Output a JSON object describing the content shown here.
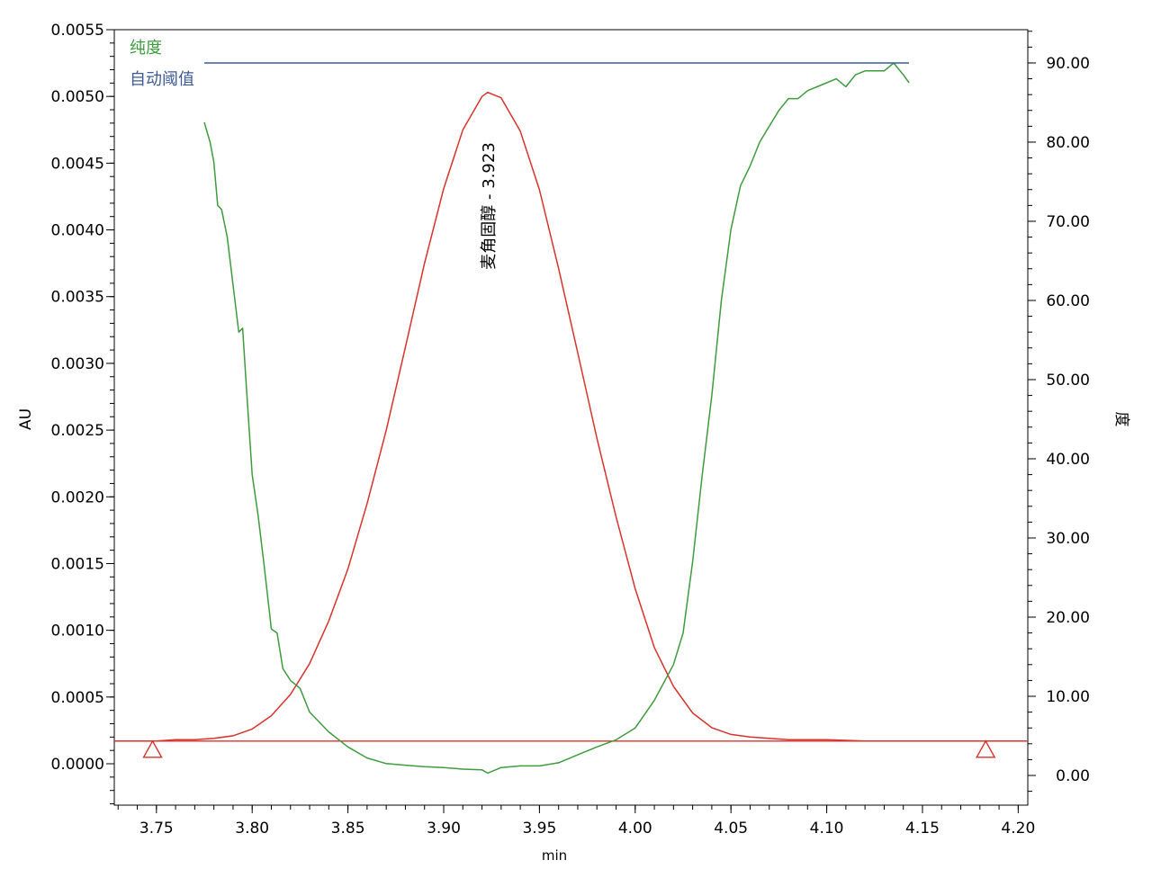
{
  "chart_data": {
    "type": "line",
    "xlabel": "min",
    "ylabel": "AU",
    "y2label": "度",
    "xlim": [
      3.728,
      4.205
    ],
    "ylim": [
      -0.00031,
      0.0055
    ],
    "y2lim": [
      -3.75,
      94.2
    ],
    "grid": false,
    "legend_placement": "top-left",
    "x_ticks": [
      "3.75",
      "3.80",
      "3.85",
      "3.90",
      "3.95",
      "4.00",
      "4.05",
      "4.10",
      "4.15",
      "4.20"
    ],
    "y_ticks": [
      "0.0000",
      "0.0005",
      "0.0010",
      "0.0015",
      "0.0020",
      "0.0025",
      "0.0030",
      "0.0035",
      "0.0040",
      "0.0045",
      "0.0050",
      "0.0055"
    ],
    "y2_ticks": [
      "0.00",
      "10.00",
      "20.00",
      "30.00",
      "40.00",
      "50.00",
      "60.00",
      "70.00",
      "80.00",
      "90.00"
    ],
    "peak_annotation": {
      "text": "麦角固醇 - 3.923",
      "x": 3.923
    },
    "baseline": {
      "y": 0.00017,
      "x_start": 3.728,
      "x_end": 4.205,
      "markers": [
        3.748,
        4.183
      ]
    },
    "series": [
      {
        "name": "",
        "axis": "left",
        "color": "#d8322c",
        "x": [
          3.728,
          3.75,
          3.76,
          3.77,
          3.78,
          3.79,
          3.8,
          3.81,
          3.82,
          3.83,
          3.84,
          3.85,
          3.86,
          3.87,
          3.88,
          3.89,
          3.9,
          3.91,
          3.92,
          3.923,
          3.93,
          3.94,
          3.95,
          3.96,
          3.97,
          3.98,
          3.99,
          4.0,
          4.01,
          4.02,
          4.03,
          4.04,
          4.05,
          4.06,
          4.07,
          4.08,
          4.1,
          4.12,
          4.14,
          4.16,
          4.18,
          4.205
        ],
        "y": [
          0.00017,
          0.00017,
          0.00018,
          0.00018,
          0.00019,
          0.00021,
          0.00026,
          0.00036,
          0.00052,
          0.00075,
          0.00107,
          0.00146,
          0.00195,
          0.0025,
          0.00312,
          0.00375,
          0.00431,
          0.00475,
          0.005,
          0.00503,
          0.00499,
          0.00474,
          0.0043,
          0.00371,
          0.00308,
          0.00244,
          0.00185,
          0.00131,
          0.00087,
          0.00058,
          0.00038,
          0.00027,
          0.00022,
          0.0002,
          0.00019,
          0.00018,
          0.00018,
          0.00017,
          0.00017,
          0.00017,
          0.00017,
          0.00017
        ]
      },
      {
        "name": "纯度",
        "axis": "right",
        "color": "#3f9b3f",
        "x": [
          3.775,
          3.778,
          3.78,
          3.782,
          3.784,
          3.787,
          3.79,
          3.793,
          3.795,
          3.797,
          3.8,
          3.803,
          3.806,
          3.81,
          3.813,
          3.816,
          3.82,
          3.825,
          3.83,
          3.84,
          3.85,
          3.86,
          3.87,
          3.88,
          3.89,
          3.9,
          3.91,
          3.92,
          3.923,
          3.93,
          3.94,
          3.95,
          3.96,
          3.97,
          3.98,
          3.99,
          4.0,
          4.01,
          4.02,
          4.025,
          4.03,
          4.035,
          4.04,
          4.045,
          4.05,
          4.055,
          4.06,
          4.065,
          4.07,
          4.075,
          4.08,
          4.085,
          4.09,
          4.1,
          4.105,
          4.11,
          4.115,
          4.12,
          4.13,
          4.135,
          4.14,
          4.143
        ],
        "y": [
          82.5,
          80.0,
          77.5,
          72.0,
          71.5,
          68.0,
          62.0,
          56.0,
          56.5,
          49.0,
          38.0,
          33.0,
          27.0,
          18.5,
          18.0,
          13.5,
          12.0,
          11.0,
          8.0,
          5.5,
          3.6,
          2.2,
          1.5,
          1.3,
          1.1,
          1.0,
          0.8,
          0.7,
          0.3,
          1.0,
          1.2,
          1.2,
          1.6,
          2.6,
          3.6,
          4.5,
          6.0,
          9.5,
          14.0,
          18.0,
          27.0,
          38.0,
          48.0,
          60.0,
          69.0,
          74.5,
          77.0,
          80.0,
          82.0,
          84.0,
          85.5,
          85.5,
          86.5,
          87.5,
          88.0,
          87.0,
          88.5,
          89.0,
          89.0,
          90.0,
          88.5,
          87.5
        ]
      },
      {
        "name": "自动阈值",
        "axis": "right",
        "color": "#3d5a99",
        "x": [
          3.775,
          4.143
        ],
        "y": [
          90.0,
          90.0
        ]
      }
    ]
  }
}
